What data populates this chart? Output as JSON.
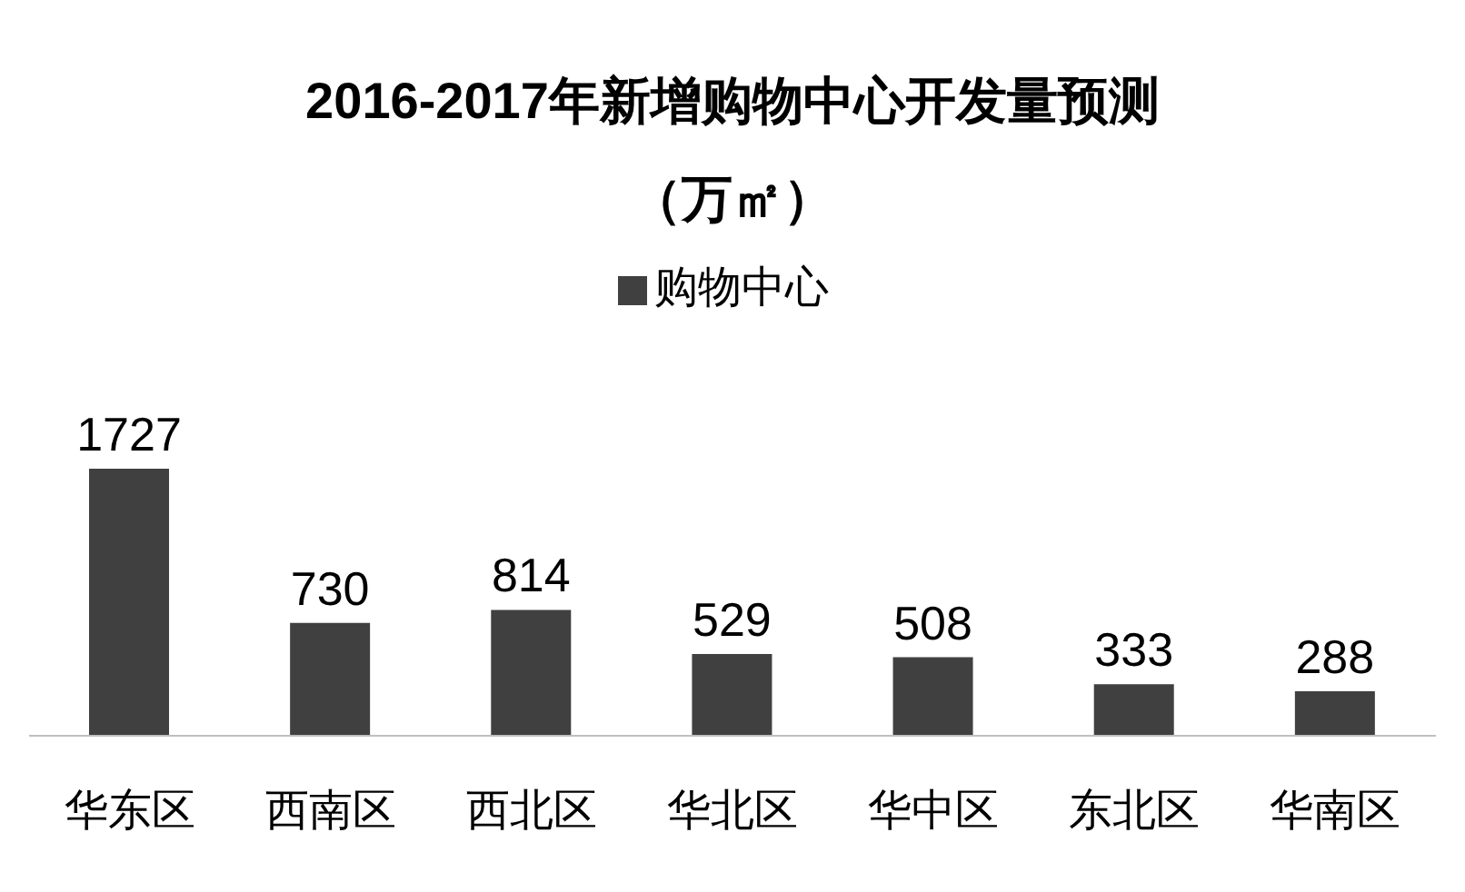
{
  "chart_data": {
    "type": "bar",
    "title": "2016-2017年新增购物中心开发量预测",
    "subtitle": "（万㎡）",
    "categories": [
      "华东区",
      "西南区",
      "西北区",
      "华北区",
      "华中区",
      "东北区",
      "华南区"
    ],
    "series": [
      {
        "name": "购物中心",
        "color": "#404040",
        "values": [
          1727,
          730,
          814,
          529,
          508,
          333,
          288
        ]
      }
    ],
    "data_labels": true,
    "legend": "top"
  }
}
